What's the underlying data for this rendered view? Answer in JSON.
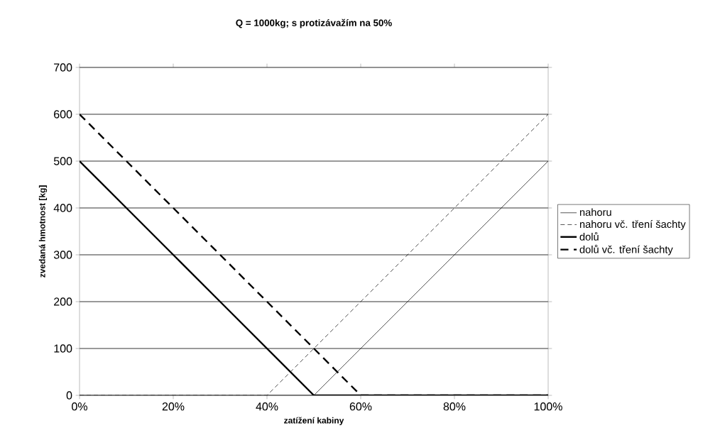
{
  "chart_data": {
    "type": "line",
    "title": "Q = 1000kg; s protizávažím na 50%",
    "xlabel": "zatížení kabiny",
    "ylabel": "zvedaná hmotnost [kg]",
    "x": [
      0,
      10,
      20,
      30,
      40,
      50,
      60,
      70,
      80,
      90,
      100
    ],
    "series": [
      {
        "name": "nahoru",
        "color": "#000000",
        "line_style": "solid",
        "values": [
          0,
          0,
          0,
          0,
          0,
          0,
          100,
          200,
          300,
          400,
          500
        ]
      },
      {
        "name": "nahoru vč. tření šachty",
        "color": "#000000",
        "line_style": "dashed",
        "values": [
          0,
          0,
          0,
          0,
          0,
          100,
          200,
          300,
          400,
          500,
          600
        ]
      },
      {
        "name": "dolů",
        "color": "#000000",
        "line_style": "solid",
        "values": [
          500,
          400,
          300,
          200,
          100,
          0,
          0,
          0,
          0,
          0,
          0
        ]
      },
      {
        "name": "dolů vč. tření šachty",
        "color": "#000000",
        "line_style": "dashed",
        "values": [
          600,
          500,
          400,
          300,
          200,
          100,
          0,
          0,
          0,
          0,
          0
        ]
      }
    ],
    "xlim": [
      0,
      100
    ],
    "xticks": [
      {
        "value": 0,
        "label": "0%"
      },
      {
        "value": 20,
        "label": "20%"
      },
      {
        "value": 40,
        "label": "40%"
      },
      {
        "value": 60,
        "label": "60%"
      },
      {
        "value": 80,
        "label": "80%"
      },
      {
        "value": 100,
        "label": "100%"
      }
    ],
    "ylim": [
      0,
      700
    ],
    "yticks": [
      0,
      100,
      200,
      300,
      400,
      500,
      600,
      700
    ],
    "grid": "y",
    "legend": "right",
    "marker": "none"
  }
}
